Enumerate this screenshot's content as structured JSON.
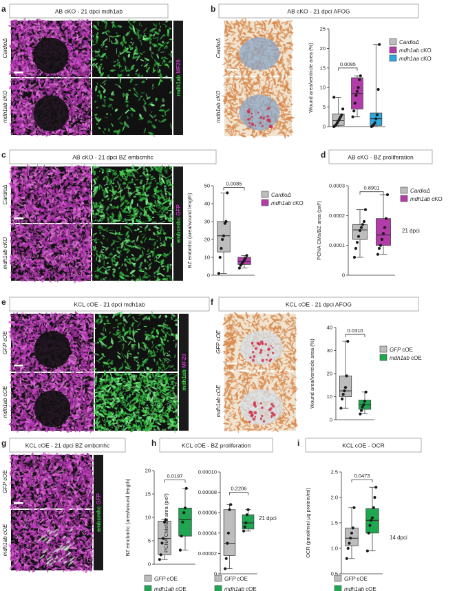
{
  "colors": {
    "gray": "#bdbdbd",
    "magenta": "#b23ca8",
    "blue": "#2fa8e0",
    "green": "#1fa650",
    "micro_bg": "#111111",
    "micro_magenta": "#c238c0",
    "micro_green": "#3ed34a",
    "stain_bg": "#f0e3cf",
    "stain_orange": "#d8884b",
    "stain_blue": "#8aa7c8",
    "stain_red": "#d02848"
  },
  "panels": {
    "a": {
      "letter": "a",
      "title": "AB cKO - 21 dpci mdh1ab",
      "side_label": "mdh1ab MF20",
      "row_labels": [
        "CardioΔ",
        "mdh1ab cKO"
      ]
    },
    "b": {
      "letter": "b",
      "title": "AB cKO - 21 dpci AFOG",
      "row_labels": [
        "CardioΔ",
        "mdh1ab cKO"
      ]
    },
    "c": {
      "letter": "c",
      "title": "AB cKO - 21 dpci BZ embcmhc",
      "side_label": "embcmhc GFP",
      "row_labels": [
        "CardioΔ",
        "mdh1ab cKO"
      ]
    },
    "d": {
      "letter": "d",
      "title": "AB cKO - BZ proliferation"
    },
    "e": {
      "letter": "e",
      "title": "KCL cOE - 21 dpci mdh1ab",
      "side_label": "mdh1ab MF20",
      "row_labels": [
        "GFP cOE",
        "mdh1ab cOE"
      ]
    },
    "f": {
      "letter": "f",
      "title": "KCL cOE - 21 dpci AFOG",
      "row_labels": [
        "GFP cOE",
        "mdh1ab cOE"
      ]
    },
    "g": {
      "letter": "g",
      "title": "KCL cOE - 21 dpci BZ embcmhc",
      "side_label": "embcmhc GFP",
      "row_labels": [
        "GFP cOE",
        "mdh1ab cOE"
      ]
    },
    "h": {
      "letter": "h",
      "title": "KCL cOE - BZ proliferation"
    },
    "i": {
      "letter": "i",
      "title": "KCL cOE - OCR"
    }
  },
  "chart_data": [
    {
      "id": "b",
      "type": "box",
      "ylabel": "Wound area/ventricle area (%)",
      "ylim": [
        0,
        25
      ],
      "yticks": [
        "0",
        "5",
        "10",
        "15",
        "20",
        "25"
      ],
      "legend": [
        "CardioΔ",
        "mdh1ab cKO",
        "mdh1aa cKO"
      ],
      "legend_position": "right",
      "series": [
        {
          "name": "CardioΔ",
          "color": "gray",
          "box": {
            "q1": 0.3,
            "median": 1.5,
            "q3": 3.2,
            "min": 0,
            "max": 7.5
          },
          "points": [
            0,
            0.2,
            0.5,
            1.0,
            1.5,
            2.0,
            2.5,
            3.0,
            4.5,
            7.5
          ]
        },
        {
          "name": "mdh1ab cKO",
          "color": "magenta",
          "box": {
            "q1": 4.5,
            "median": 8.5,
            "q3": 12.5,
            "min": 2.5,
            "max": 13.0
          },
          "points": [
            2.5,
            4.0,
            6.0,
            8.0,
            9.0,
            10.0,
            12.0,
            13.0
          ]
        },
        {
          "name": "mdh1aa cKO",
          "color": "blue",
          "box": {
            "q1": 0.3,
            "median": 2.0,
            "q3": 3.5,
            "min": 0,
            "max": 21.0
          },
          "points": [
            0,
            0.2,
            0.5,
            1.0,
            2.0,
            3.0,
            9.5,
            21.0
          ]
        }
      ],
      "pvalues": [
        {
          "text": "0.0095",
          "from": 0,
          "to": 1,
          "y": 15
        }
      ]
    },
    {
      "id": "c",
      "type": "box",
      "ylabel": "BZ embmhc (area/wound length)",
      "ylim": [
        0,
        50
      ],
      "yticks": [
        "0",
        "10",
        "20",
        "30",
        "40",
        "50"
      ],
      "legend": [
        "CardioΔ",
        "mdh1ab cKO"
      ],
      "legend_position": "right",
      "series": [
        {
          "name": "CardioΔ",
          "color": "gray",
          "box": {
            "q1": 13.0,
            "median": 22.0,
            "q3": 30.0,
            "min": 1.0,
            "max": 46.0
          },
          "points": [
            1.0,
            10.0,
            15.0,
            20.0,
            22.0,
            29.0,
            30.0,
            46.0
          ]
        },
        {
          "name": "mdh1ab cKO",
          "color": "magenta",
          "box": {
            "q1": 6.0,
            "median": 7.5,
            "q3": 10.0,
            "min": 4.0,
            "max": 11.0
          },
          "points": [
            4.0,
            5.5,
            6.5,
            7.5,
            8.5,
            9.5,
            11.0
          ]
        }
      ],
      "pvalues": [
        {
          "text": "0.0085",
          "from": 0,
          "to": 1,
          "y": 49
        }
      ]
    },
    {
      "id": "d",
      "type": "box",
      "ylabel": "PCNA CMs/BZ area (pxl²)",
      "ylim": [
        0,
        0.0003
      ],
      "yticks": [
        "0",
        "0.0001",
        "0.0002",
        "0.0003"
      ],
      "legend": [
        "CardioΔ",
        "mdh1ab cKO"
      ],
      "legend_position": "top-right",
      "annotation": "21 dpci",
      "series": [
        {
          "name": "CardioΔ",
          "color": "gray",
          "box": {
            "q1": 0.00012,
            "median": 0.000152,
            "q3": 0.00017,
            "min": 6e-05,
            "max": 0.00022
          },
          "points": [
            6e-05,
            9e-05,
            0.00011,
            0.00013,
            0.00015,
            0.00016,
            0.00017,
            0.00018,
            0.00022
          ]
        },
        {
          "name": "mdh1ab cKO",
          "color": "magenta",
          "box": {
            "q1": 0.0001,
            "median": 0.000135,
            "q3": 0.00019,
            "min": 7e-05,
            "max": 0.00027
          },
          "points": [
            7e-05,
            9e-05,
            0.0001,
            0.00012,
            0.00014,
            0.00016,
            0.00019,
            0.00027
          ]
        }
      ],
      "pvalues": [
        {
          "text": "0.8901",
          "from": 0,
          "to": 1,
          "y": 0.00028
        }
      ]
    },
    {
      "id": "f",
      "type": "box",
      "ylabel": "Wound area/ventricle area (%)",
      "ylim": [
        0,
        40
      ],
      "yticks": [
        "0",
        "10",
        "20",
        "30",
        "40"
      ],
      "legend": [
        "GFP cOE",
        "mdh1ab cOE"
      ],
      "legend_position": "right",
      "series": [
        {
          "name": "GFP cOE",
          "color": "gray",
          "box": {
            "q1": 10.0,
            "median": 12.5,
            "q3": 19.0,
            "min": 5.0,
            "max": 34.0
          },
          "points": [
            5.0,
            9.0,
            11.0,
            12.5,
            14.0,
            19.0,
            34.0
          ]
        },
        {
          "name": "mdh1ab cOE",
          "color": "green",
          "box": {
            "q1": 4.5,
            "median": 6.5,
            "q3": 8.5,
            "min": 2.5,
            "max": 12.0
          },
          "points": [
            2.5,
            4.0,
            5.5,
            6.5,
            8.0,
            12.0
          ]
        }
      ],
      "pvalues": [
        {
          "text": "0.0310",
          "from": 0,
          "to": 1,
          "y": 37
        }
      ]
    },
    {
      "id": "g",
      "type": "box",
      "ylabel": "BZ emcbmhc (area/wound length)",
      "ylim": [
        0,
        20
      ],
      "yticks": [
        "0",
        "5",
        "10",
        "15",
        "20"
      ],
      "legend": [
        "GFP cOE",
        "mdh1ab cOE"
      ],
      "legend_position": "bottom",
      "series": [
        {
          "name": "GFP cOE",
          "color": "gray",
          "box": {
            "q1": 2.0,
            "median": 5.5,
            "q3": 9.2,
            "min": 1.0,
            "max": 9.5
          },
          "points": [
            1.0,
            2.0,
            4.5,
            5.5,
            9.0,
            9.5
          ]
        },
        {
          "name": "mdh1ab cOE",
          "color": "green",
          "box": {
            "q1": 6.0,
            "median": 9.5,
            "q3": 12.0,
            "min": 3.0,
            "max": 16.2
          },
          "points": [
            3.0,
            6.0,
            9.0,
            11.0,
            12.0,
            16.2
          ]
        }
      ],
      "pvalues": [
        {
          "text": "0.0197",
          "from": 0,
          "to": 1,
          "y": 18
        }
      ]
    },
    {
      "id": "h",
      "type": "box",
      "ylabel": "PCNA CMs/BZ area (pxl²)",
      "ylim": [
        0,
        0.0001
      ],
      "yticks": [
        "0",
        "0.00002",
        "0.00004",
        "0.00006",
        "0.00008",
        "0.00010"
      ],
      "legend": [
        "GFP cOE",
        "mdh1ab cOE"
      ],
      "legend_position": "bottom",
      "annotation": "21 dpci",
      "series": [
        {
          "name": "GFP cOE",
          "color": "gray",
          "box": {
            "q1": 1.8e-05,
            "median": 3e-05,
            "q3": 6.3e-05,
            "min": 5e-06,
            "max": 6.8e-05
          },
          "points": [
            5e-06,
            1.5e-05,
            3e-05,
            4e-05,
            6.3e-05,
            6.8e-05
          ]
        },
        {
          "name": "mdh1ab cOE",
          "color": "green",
          "box": {
            "q1": 4.4e-05,
            "median": 5e-05,
            "q3": 5.8e-05,
            "min": 4.2e-05,
            "max": 6.3e-05
          },
          "points": [
            4.2e-05,
            4.6e-05,
            5e-05,
            5.8e-05,
            6.3e-05
          ]
        }
      ],
      "pvalues": [
        {
          "text": "0.2206",
          "from": 0,
          "to": 1,
          "y": 8e-05
        }
      ]
    },
    {
      "id": "i",
      "type": "box",
      "ylabel": "OCR (pmol/min/ µg protein/ml)",
      "ylim": [
        0.5,
        2.5
      ],
      "yticks": [
        "0.5",
        "1.0",
        "1.5",
        "2.0",
        "2.5"
      ],
      "legend": [
        "GFP cOE",
        "mdh1ab cOE"
      ],
      "legend_position": "bottom",
      "annotation": "14 dpci",
      "series": [
        {
          "name": "GFP cOE",
          "color": "gray",
          "box": {
            "q1": 1.05,
            "median": 1.2,
            "q3": 1.4,
            "min": 0.8,
            "max": 1.8
          },
          "points": [
            0.8,
            1.0,
            1.1,
            1.2,
            1.3,
            1.4,
            1.8
          ]
        },
        {
          "name": "mdh1ab cOE",
          "color": "green",
          "box": {
            "q1": 1.3,
            "median": 1.55,
            "q3": 1.78,
            "min": 0.95,
            "max": 2.2
          },
          "points": [
            0.95,
            1.3,
            1.45,
            1.55,
            1.6,
            1.8,
            2.0,
            2.2
          ]
        }
      ],
      "pvalues": [
        {
          "text": "0.0473",
          "from": 0,
          "to": 1,
          "y": 2.35
        }
      ]
    }
  ]
}
